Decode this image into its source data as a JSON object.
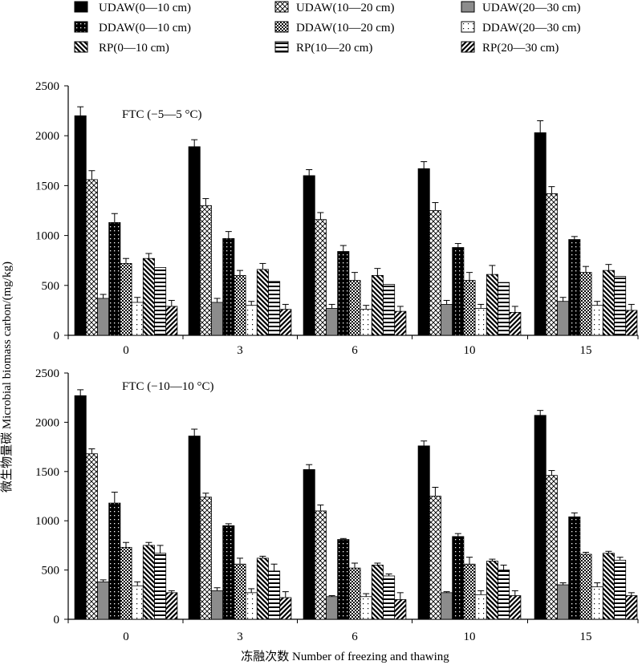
{
  "colors": {
    "black": "#000000",
    "gray": "#8c8c8c",
    "white": "#ffffff",
    "axis": "#000000"
  },
  "legend": {
    "placement": "top",
    "items": [
      {
        "label": "UDAW(0—10 cm)",
        "pattern": "solid-black"
      },
      {
        "label": "UDAW(10—20 cm)",
        "pattern": "crosshatch"
      },
      {
        "label": "UDAW(20—30 cm)",
        "pattern": "solid-gray"
      },
      {
        "label": "DDAW(0—10 cm)",
        "pattern": "black-dots"
      },
      {
        "label": "DDAW(10—20 cm)",
        "pattern": "checker"
      },
      {
        "label": "DDAW(20—30 cm)",
        "pattern": "sparse-dots"
      },
      {
        "label": "RP(0—10 cm)",
        "pattern": "diag-backslash"
      },
      {
        "label": "RP(10—20 cm)",
        "pattern": "horizontal"
      },
      {
        "label": "RP(20—30 cm)",
        "pattern": "diag-slash"
      }
    ]
  },
  "yaxis_title": "微生物量碳 Microbial biomass carbon/(mg/kg)",
  "xaxis_title": "冻融次数  Number of freezing and thawing",
  "chart_data": [
    {
      "type": "bar",
      "annotation": "FTC (−5—5 °C)",
      "categories": [
        "0",
        "3",
        "6",
        "10",
        "15"
      ],
      "ylim": [
        0,
        2500
      ],
      "yticks": [
        "0",
        "500",
        "1000",
        "1500",
        "2000",
        "2500"
      ],
      "grid": false,
      "series": [
        {
          "name": "UDAW(0—10 cm)",
          "values": [
            2200,
            1890,
            1600,
            1670,
            2030
          ],
          "errors": [
            90,
            70,
            60,
            70,
            120
          ]
        },
        {
          "name": "UDAW(10—20 cm)",
          "values": [
            1560,
            1300,
            1160,
            1250,
            1420
          ],
          "errors": [
            90,
            70,
            70,
            80,
            70
          ]
        },
        {
          "name": "UDAW(20—30 cm)",
          "values": [
            370,
            330,
            270,
            310,
            340
          ],
          "errors": [
            40,
            40,
            40,
            40,
            40
          ]
        },
        {
          "name": "DDAW(0—10 cm)",
          "values": [
            1130,
            970,
            840,
            880,
            960
          ],
          "errors": [
            90,
            70,
            60,
            40,
            30
          ]
        },
        {
          "name": "DDAW(10—20 cm)",
          "values": [
            720,
            600,
            550,
            550,
            630
          ],
          "errors": [
            50,
            50,
            80,
            80,
            60
          ]
        },
        {
          "name": "DDAW(20—30 cm)",
          "values": [
            330,
            300,
            260,
            270,
            300
          ],
          "errors": [
            50,
            40,
            40,
            40,
            40
          ]
        },
        {
          "name": "RP(0—10 cm)",
          "values": [
            770,
            660,
            600,
            610,
            650
          ],
          "errors": [
            50,
            60,
            70,
            90,
            60
          ]
        },
        {
          "name": "RP(10—20 cm)",
          "values": [
            680,
            540,
            510,
            530,
            590
          ],
          "errors": [
            0,
            0,
            0,
            0,
            0
          ]
        },
        {
          "name": "RP(20—30 cm)",
          "values": [
            290,
            260,
            240,
            230,
            250
          ],
          "errors": [
            60,
            50,
            50,
            60,
            60
          ]
        }
      ]
    },
    {
      "type": "bar",
      "annotation": "FTC (−10—10 °C)",
      "categories": [
        "0",
        "3",
        "6",
        "10",
        "15"
      ],
      "ylim": [
        0,
        2500
      ],
      "yticks": [
        "0",
        "500",
        "1000",
        "1500",
        "2000",
        "2500"
      ],
      "grid": false,
      "series": [
        {
          "name": "UDAW(0—10 cm)",
          "values": [
            2270,
            1860,
            1520,
            1760,
            2070
          ],
          "errors": [
            60,
            70,
            50,
            50,
            50
          ]
        },
        {
          "name": "UDAW(10—20 cm)",
          "values": [
            1680,
            1240,
            1100,
            1250,
            1460
          ],
          "errors": [
            50,
            40,
            60,
            90,
            50
          ]
        },
        {
          "name": "UDAW(20—30 cm)",
          "values": [
            380,
            290,
            230,
            270,
            350
          ],
          "errors": [
            20,
            30,
            10,
            10,
            20
          ]
        },
        {
          "name": "DDAW(0—10 cm)",
          "values": [
            1180,
            950,
            810,
            840,
            1040
          ],
          "errors": [
            110,
            20,
            10,
            30,
            40
          ]
        },
        {
          "name": "DDAW(10—20 cm)",
          "values": [
            730,
            560,
            520,
            560,
            660
          ],
          "errors": [
            50,
            60,
            50,
            70,
            20
          ]
        },
        {
          "name": "DDAW(20—30 cm)",
          "values": [
            340,
            270,
            230,
            250,
            330
          ],
          "errors": [
            40,
            40,
            30,
            40,
            40
          ]
        },
        {
          "name": "RP(0—10 cm)",
          "values": [
            750,
            620,
            550,
            590,
            670
          ],
          "errors": [
            30,
            20,
            20,
            20,
            20
          ]
        },
        {
          "name": "RP(10—20 cm)",
          "values": [
            670,
            490,
            440,
            500,
            600
          ],
          "errors": [
            80,
            70,
            20,
            50,
            30
          ]
        },
        {
          "name": "RP(20—30 cm)",
          "values": [
            270,
            220,
            200,
            240,
            240
          ],
          "errors": [
            20,
            60,
            70,
            50,
            30
          ]
        }
      ]
    }
  ]
}
